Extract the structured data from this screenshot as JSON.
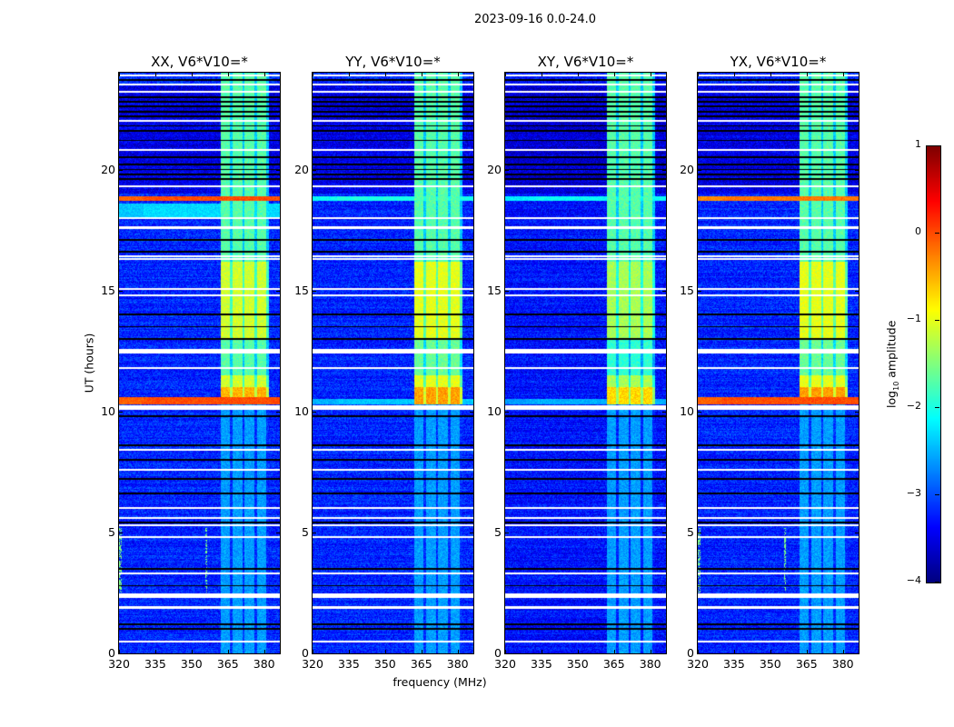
{
  "figure_title": "2023-09-16 0.0-24.0",
  "chart_data": {
    "type": "heatmap",
    "title": "2023-09-16 0.0-24.0",
    "xlabel": "frequency (MHz)",
    "ylabel": "UT (hours)",
    "xlim": [
      320,
      386.5
    ],
    "ylim": [
      0,
      24
    ],
    "xticks": [
      320,
      335,
      350,
      365,
      380
    ],
    "yticks": [
      0,
      5,
      10,
      15,
      20
    ],
    "colorbar": {
      "label_prefix": "log",
      "label_sub": "10",
      "label_suffix": " amplitude",
      "range": [
        -4,
        1
      ],
      "ticks": [
        1,
        0,
        -1,
        -2,
        -3,
        -4
      ],
      "tick_labels": [
        "1",
        "0",
        "−1",
        "−2",
        "−3",
        "−4"
      ],
      "colormap": "jet"
    },
    "panels": [
      {
        "title": "XX, V6*V10=*",
        "background_level": -3.2,
        "band_level_day": -1.1,
        "rfi_rows": [
          {
            "t": [
              10.3,
              10.6
            ],
            "level": 0.0
          },
          {
            "t": [
              18.7,
              18.9
            ],
            "level": 0.0
          },
          {
            "t": [
              18.0,
              18.6
            ],
            "level": -2.3
          }
        ],
        "spiky_low_hours": [
          2.5,
          5.2
        ]
      },
      {
        "title": "YY, V6*V10=*",
        "background_level": -3.2,
        "band_level_day": -1.0,
        "rfi_rows": [
          {
            "t": [
              10.3,
              10.5
            ],
            "level": -2.4
          },
          {
            "t": [
              18.7,
              18.9
            ],
            "level": -2.0
          }
        ],
        "spiky_low_hours": []
      },
      {
        "title": "XY, V6*V10=*",
        "background_level": -3.3,
        "band_level_day": -1.3,
        "rfi_rows": [
          {
            "t": [
              10.3,
              10.5
            ],
            "level": -2.5
          },
          {
            "t": [
              18.7,
              18.9
            ],
            "level": -2.1
          }
        ],
        "spiky_low_hours": []
      },
      {
        "title": "YX, V6*V10=*",
        "background_level": -3.2,
        "band_level_day": -1.0,
        "rfi_rows": [
          {
            "t": [
              10.3,
              10.6
            ],
            "level": 0.0
          },
          {
            "t": [
              18.7,
              18.9
            ],
            "level": -0.2
          }
        ],
        "spiky_low_hours": [
          2.5,
          5.2
        ]
      }
    ],
    "rfi_band_mhz": [
      362,
      382
    ],
    "rfi_channels_mhz": [
      [
        362,
        366
      ],
      [
        367,
        371
      ],
      [
        372,
        376
      ],
      [
        377,
        381
      ]
    ],
    "flagged_gap_hours": [
      0.5,
      1.9,
      2.35,
      2.45,
      3.3,
      4.8,
      5.3,
      5.6,
      6.0,
      7.6,
      8.4,
      10.1,
      10.2,
      11.8,
      12.45,
      12.55,
      14.8,
      15.05,
      16.3,
      16.4,
      17.6,
      18.0,
      19.3,
      20.8,
      22.0,
      23.2,
      23.5,
      23.9
    ],
    "zero_row_hours": [
      1.0,
      1.2,
      2.8,
      3.5,
      5.4,
      6.6,
      7.2,
      8.0,
      8.6,
      9.8,
      13.0,
      13.5,
      14.0,
      16.6,
      17.1,
      19.6,
      19.8,
      20.0,
      20.2,
      20.5,
      21.2,
      21.6,
      21.8,
      22.2,
      22.4,
      22.6,
      22.8,
      23.0,
      23.7
    ]
  }
}
